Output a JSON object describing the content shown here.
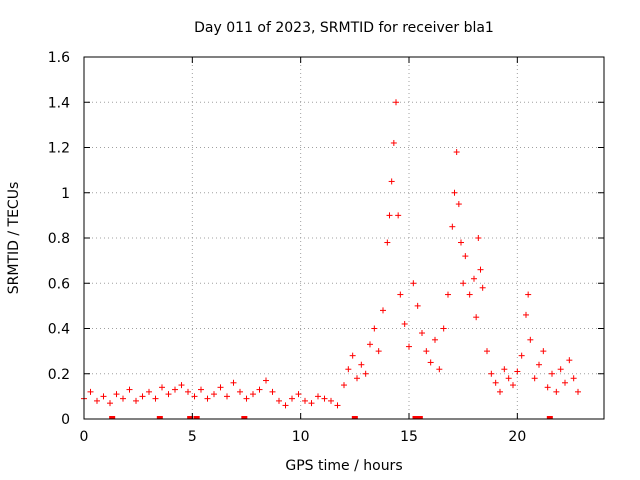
{
  "chart_data": {
    "type": "scatter",
    "title": "Day 011 of 2023, SRMTID for receiver bla1",
    "xlabel": "GPS time / hours",
    "ylabel": "SRMTID / TECUs",
    "xlim": [
      0,
      24
    ],
    "ylim": [
      0,
      1.6
    ],
    "xticks": [
      0,
      5,
      10,
      15,
      20
    ],
    "xtick_labels": [
      "0",
      "5",
      "10",
      "15",
      "20"
    ],
    "yticks": [
      0,
      0.2,
      0.4,
      0.6,
      0.8,
      1.0,
      1.2,
      1.4,
      1.6
    ],
    "ytick_labels": [
      "0",
      "0.2",
      "0.4",
      "0.6",
      "0.8",
      "1",
      "1.2",
      "1.4",
      "1.6"
    ],
    "grid": true,
    "marker": "+",
    "color": "#ff0000",
    "series": [
      {
        "name": "SRMTID",
        "x": [
          0.0,
          0.3,
          0.6,
          0.9,
          1.2,
          1.5,
          1.8,
          2.1,
          2.4,
          2.7,
          3.0,
          3.3,
          3.6,
          3.9,
          4.2,
          4.5,
          4.8,
          5.1,
          5.4,
          5.7,
          6.0,
          6.3,
          6.6,
          6.9,
          7.2,
          7.5,
          7.8,
          8.1,
          8.4,
          8.7,
          9.0,
          9.3,
          9.6,
          9.9,
          10.2,
          10.5,
          10.8,
          11.1,
          11.4,
          11.7,
          12.0,
          12.2,
          12.4,
          12.6,
          12.8,
          13.0,
          13.2,
          13.4,
          13.6,
          13.8,
          14.0,
          14.1,
          14.2,
          14.3,
          14.4,
          14.5,
          14.6,
          14.8,
          15.0,
          15.2,
          15.4,
          15.6,
          15.8,
          16.0,
          16.2,
          16.4,
          16.6,
          16.8,
          17.0,
          17.1,
          17.2,
          17.3,
          17.4,
          17.5,
          17.6,
          17.8,
          18.0,
          18.1,
          18.2,
          18.3,
          18.4,
          18.6,
          18.8,
          19.0,
          19.2,
          19.4,
          19.6,
          19.8,
          20.0,
          20.2,
          20.4,
          20.5,
          20.6,
          20.8,
          21.0,
          21.2,
          21.4,
          21.6,
          21.8,
          22.0,
          22.2,
          22.4,
          22.6,
          22.8
        ],
        "y": [
          0.09,
          0.12,
          0.08,
          0.1,
          0.07,
          0.11,
          0.09,
          0.13,
          0.08,
          0.1,
          0.12,
          0.09,
          0.14,
          0.11,
          0.13,
          0.15,
          0.12,
          0.1,
          0.13,
          0.09,
          0.11,
          0.14,
          0.1,
          0.16,
          0.12,
          0.09,
          0.11,
          0.13,
          0.17,
          0.12,
          0.08,
          0.06,
          0.09,
          0.11,
          0.08,
          0.07,
          0.1,
          0.09,
          0.08,
          0.06,
          0.15,
          0.22,
          0.28,
          0.18,
          0.24,
          0.2,
          0.33,
          0.4,
          0.3,
          0.48,
          0.78,
          0.9,
          1.05,
          1.22,
          1.4,
          0.9,
          0.55,
          0.42,
          0.32,
          0.6,
          0.5,
          0.38,
          0.3,
          0.25,
          0.35,
          0.22,
          0.4,
          0.55,
          0.85,
          1.0,
          1.18,
          0.95,
          0.78,
          0.6,
          0.72,
          0.55,
          0.62,
          0.45,
          0.8,
          0.66,
          0.58,
          0.3,
          0.2,
          0.16,
          0.12,
          0.22,
          0.18,
          0.15,
          0.21,
          0.28,
          0.46,
          0.55,
          0.35,
          0.18,
          0.24,
          0.3,
          0.14,
          0.2,
          0.12,
          0.22,
          0.16,
          0.26,
          0.18,
          0.12
        ]
      }
    ],
    "zero_markers_x": [
      1.3,
      3.5,
      4.9,
      5.2,
      7.4,
      12.5,
      15.3,
      15.5,
      21.5
    ]
  }
}
